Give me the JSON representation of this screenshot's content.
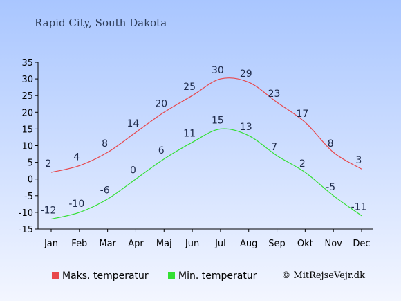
{
  "chart_data": {
    "type": "line",
    "title": "Rapid City, South Dakota",
    "categories": [
      "Jan",
      "Feb",
      "Mar",
      "Apr",
      "Maj",
      "Jun",
      "Jul",
      "Aug",
      "Sep",
      "Okt",
      "Nov",
      "Dec"
    ],
    "ylim": [
      -15,
      35
    ],
    "yticks": [
      -15,
      -10,
      -5,
      0,
      5,
      10,
      15,
      20,
      25,
      30,
      35
    ],
    "grid": false,
    "legend_position": "bottom",
    "series": [
      {
        "name": "Maks. temperatur",
        "color": "#e8474c",
        "values": [
          2,
          4,
          8,
          14,
          20,
          25,
          30,
          29,
          23,
          17,
          8,
          3
        ]
      },
      {
        "name": "Min. temperatur",
        "color": "#33e033",
        "values": [
          -12,
          -10,
          -6,
          0,
          6,
          11,
          15,
          13,
          7,
          2,
          -5,
          -11
        ]
      }
    ],
    "credit": "© MitRejseVejr.dk"
  }
}
